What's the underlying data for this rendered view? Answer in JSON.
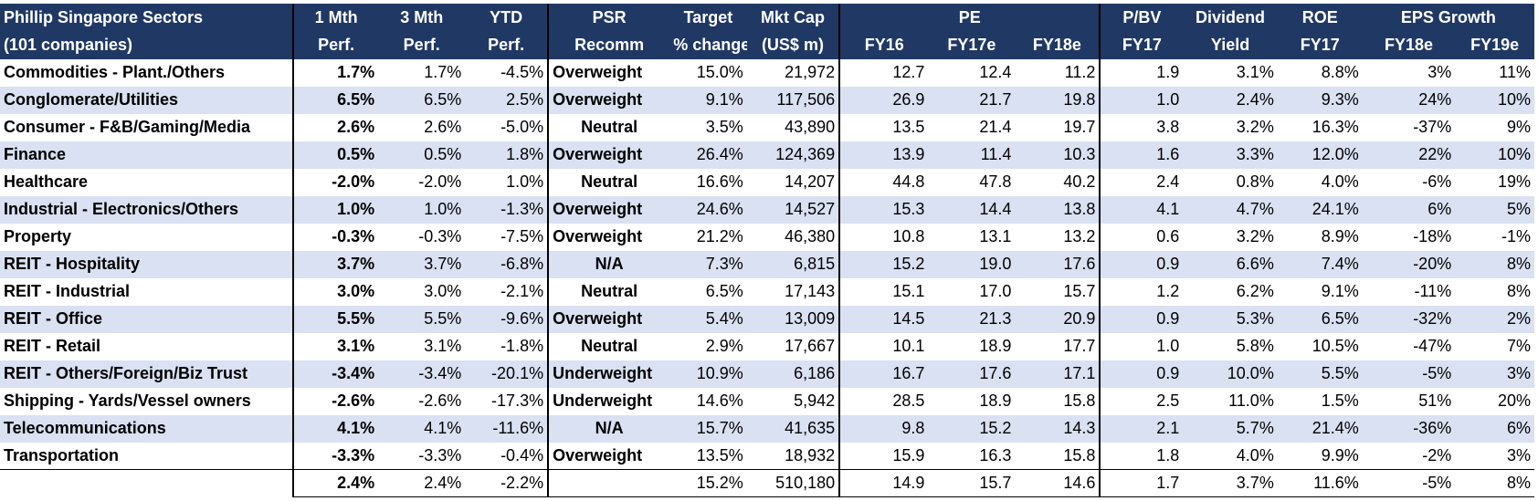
{
  "header": {
    "row1": {
      "sector": "Phillip Singapore Sectors",
      "m1": "1 Mth",
      "m3": "3 Mth",
      "ytd": "YTD",
      "psr": "PSR",
      "target": "Target",
      "mktcap": "Mkt Cap",
      "pe": "PE",
      "pbv": "P/BV",
      "div": "Dividend",
      "roe": "ROE",
      "eps": "EPS Growth"
    },
    "row2": {
      "sector": "(101 companies)",
      "m1": "Perf.",
      "m3": "Perf.",
      "ytd": "Perf.",
      "psr": "Recomm",
      "target": "% change",
      "mktcap": "(US$ m)",
      "pe16": "FY16",
      "pe17": "FY17e",
      "pe18": "FY18e",
      "pbv": "FY17",
      "div": "Yield",
      "roe": "FY17",
      "eps18": "FY18e",
      "eps19": "FY19e"
    }
  },
  "rows": [
    {
      "sector": "Commodities - Plant./Others",
      "m1": "1.7%",
      "m3": "1.7%",
      "ytd": "-4.5%",
      "recomm": "Overweight",
      "target": "15.0%",
      "mktcap": "21,972",
      "pe16": "12.7",
      "pe17": "12.4",
      "pe18": "11.2",
      "pbv": "1.9",
      "div": "3.1%",
      "roe": "8.8%",
      "eps18": "3%",
      "eps19": "11%"
    },
    {
      "sector": "Conglomerate/Utilities",
      "m1": "6.5%",
      "m3": "6.5%",
      "ytd": "2.5%",
      "recomm": "Overweight",
      "target": "9.1%",
      "mktcap": "117,506",
      "pe16": "26.9",
      "pe17": "21.7",
      "pe18": "19.8",
      "pbv": "1.0",
      "div": "2.4%",
      "roe": "9.3%",
      "eps18": "24%",
      "eps19": "10%"
    },
    {
      "sector": "Consumer - F&B/Gaming/Media",
      "m1": "2.6%",
      "m3": "2.6%",
      "ytd": "-5.0%",
      "recomm": "Neutral",
      "target": "3.5%",
      "mktcap": "43,890",
      "pe16": "13.5",
      "pe17": "21.4",
      "pe18": "19.7",
      "pbv": "3.8",
      "div": "3.2%",
      "roe": "16.3%",
      "eps18": "-37%",
      "eps19": "9%"
    },
    {
      "sector": "Finance",
      "m1": "0.5%",
      "m3": "0.5%",
      "ytd": "1.8%",
      "recomm": "Overweight",
      "target": "26.4%",
      "mktcap": "124,369",
      "pe16": "13.9",
      "pe17": "11.4",
      "pe18": "10.3",
      "pbv": "1.6",
      "div": "3.3%",
      "roe": "12.0%",
      "eps18": "22%",
      "eps19": "10%"
    },
    {
      "sector": "Healthcare",
      "m1": "-2.0%",
      "m3": "-2.0%",
      "ytd": "1.0%",
      "recomm": "Neutral",
      "target": "16.6%",
      "mktcap": "14,207",
      "pe16": "44.8",
      "pe17": "47.8",
      "pe18": "40.2",
      "pbv": "2.4",
      "div": "0.8%",
      "roe": "4.0%",
      "eps18": "-6%",
      "eps19": "19%"
    },
    {
      "sector": "Industrial - Electronics/Others",
      "m1": "1.0%",
      "m3": "1.0%",
      "ytd": "-1.3%",
      "recomm": "Overweight",
      "target": "24.6%",
      "mktcap": "14,527",
      "pe16": "15.3",
      "pe17": "14.4",
      "pe18": "13.8",
      "pbv": "4.1",
      "div": "4.7%",
      "roe": "24.1%",
      "eps18": "6%",
      "eps19": "5%"
    },
    {
      "sector": "Property",
      "m1": "-0.3%",
      "m3": "-0.3%",
      "ytd": "-7.5%",
      "recomm": "Overweight",
      "target": "21.2%",
      "mktcap": "46,380",
      "pe16": "10.8",
      "pe17": "13.1",
      "pe18": "13.2",
      "pbv": "0.6",
      "div": "3.2%",
      "roe": "8.9%",
      "eps18": "-18%",
      "eps19": "-1%"
    },
    {
      "sector": "REIT - Hospitality",
      "m1": "3.7%",
      "m3": "3.7%",
      "ytd": "-6.8%",
      "recomm": "N/A",
      "target": "7.3%",
      "mktcap": "6,815",
      "pe16": "15.2",
      "pe17": "19.0",
      "pe18": "17.6",
      "pbv": "0.9",
      "div": "6.6%",
      "roe": "7.4%",
      "eps18": "-20%",
      "eps19": "8%"
    },
    {
      "sector": "REIT - Industrial",
      "m1": "3.0%",
      "m3": "3.0%",
      "ytd": "-2.1%",
      "recomm": "Neutral",
      "target": "6.5%",
      "mktcap": "17,143",
      "pe16": "15.1",
      "pe17": "17.0",
      "pe18": "15.7",
      "pbv": "1.2",
      "div": "6.2%",
      "roe": "9.1%",
      "eps18": "-11%",
      "eps19": "8%"
    },
    {
      "sector": "REIT - Office",
      "m1": "5.5%",
      "m3": "5.5%",
      "ytd": "-9.6%",
      "recomm": "Overweight",
      "target": "5.4%",
      "mktcap": "13,009",
      "pe16": "14.5",
      "pe17": "21.3",
      "pe18": "20.9",
      "pbv": "0.9",
      "div": "5.3%",
      "roe": "6.5%",
      "eps18": "-32%",
      "eps19": "2%"
    },
    {
      "sector": "REIT - Retail",
      "m1": "3.1%",
      "m3": "3.1%",
      "ytd": "-1.8%",
      "recomm": "Neutral",
      "target": "2.9%",
      "mktcap": "17,667",
      "pe16": "10.1",
      "pe17": "18.9",
      "pe18": "17.7",
      "pbv": "1.0",
      "div": "5.8%",
      "roe": "10.5%",
      "eps18": "-47%",
      "eps19": "7%"
    },
    {
      "sector": "REIT - Others/Foreign/Biz Trust",
      "m1": "-3.4%",
      "m3": "-3.4%",
      "ytd": "-20.1%",
      "recomm": "Underweight",
      "target": "10.9%",
      "mktcap": "6,186",
      "pe16": "16.7",
      "pe17": "17.6",
      "pe18": "17.1",
      "pbv": "0.9",
      "div": "10.0%",
      "roe": "5.5%",
      "eps18": "-5%",
      "eps19": "3%"
    },
    {
      "sector": "Shipping - Yards/Vessel owners",
      "m1": "-2.6%",
      "m3": "-2.6%",
      "ytd": "-17.3%",
      "recomm": "Underweight",
      "target": "14.6%",
      "mktcap": "5,942",
      "pe16": "28.5",
      "pe17": "18.9",
      "pe18": "15.8",
      "pbv": "2.5",
      "div": "11.0%",
      "roe": "1.5%",
      "eps18": "51%",
      "eps19": "20%"
    },
    {
      "sector": "Telecommunications",
      "m1": "4.1%",
      "m3": "4.1%",
      "ytd": "-11.6%",
      "recomm": "N/A",
      "target": "15.7%",
      "mktcap": "41,635",
      "pe16": "9.8",
      "pe17": "15.2",
      "pe18": "14.3",
      "pbv": "2.1",
      "div": "5.7%",
      "roe": "21.4%",
      "eps18": "-36%",
      "eps19": "6%"
    },
    {
      "sector": "Transportation",
      "m1": "-3.3%",
      "m3": "-3.3%",
      "ytd": "-0.4%",
      "recomm": "Overweight",
      "target": "13.5%",
      "mktcap": "18,932",
      "pe16": "15.9",
      "pe17": "16.3",
      "pe18": "15.8",
      "pbv": "1.8",
      "div": "4.0%",
      "roe": "9.9%",
      "eps18": "-2%",
      "eps19": "3%"
    }
  ],
  "total": {
    "m1": "2.4%",
    "m3": "2.4%",
    "ytd": "-2.2%",
    "target": "15.2%",
    "mktcap": "510,180",
    "pe16": "14.9",
    "pe17": "15.7",
    "pe18": "14.6",
    "pbv": "1.7",
    "div": "3.7%",
    "roe": "11.6%",
    "eps18": "-5%",
    "eps19": "8%"
  },
  "colors": {
    "header_bg": "#203864",
    "header_text": "#ffffff",
    "stripe": "#d9e1f2",
    "rule": "#000000"
  }
}
